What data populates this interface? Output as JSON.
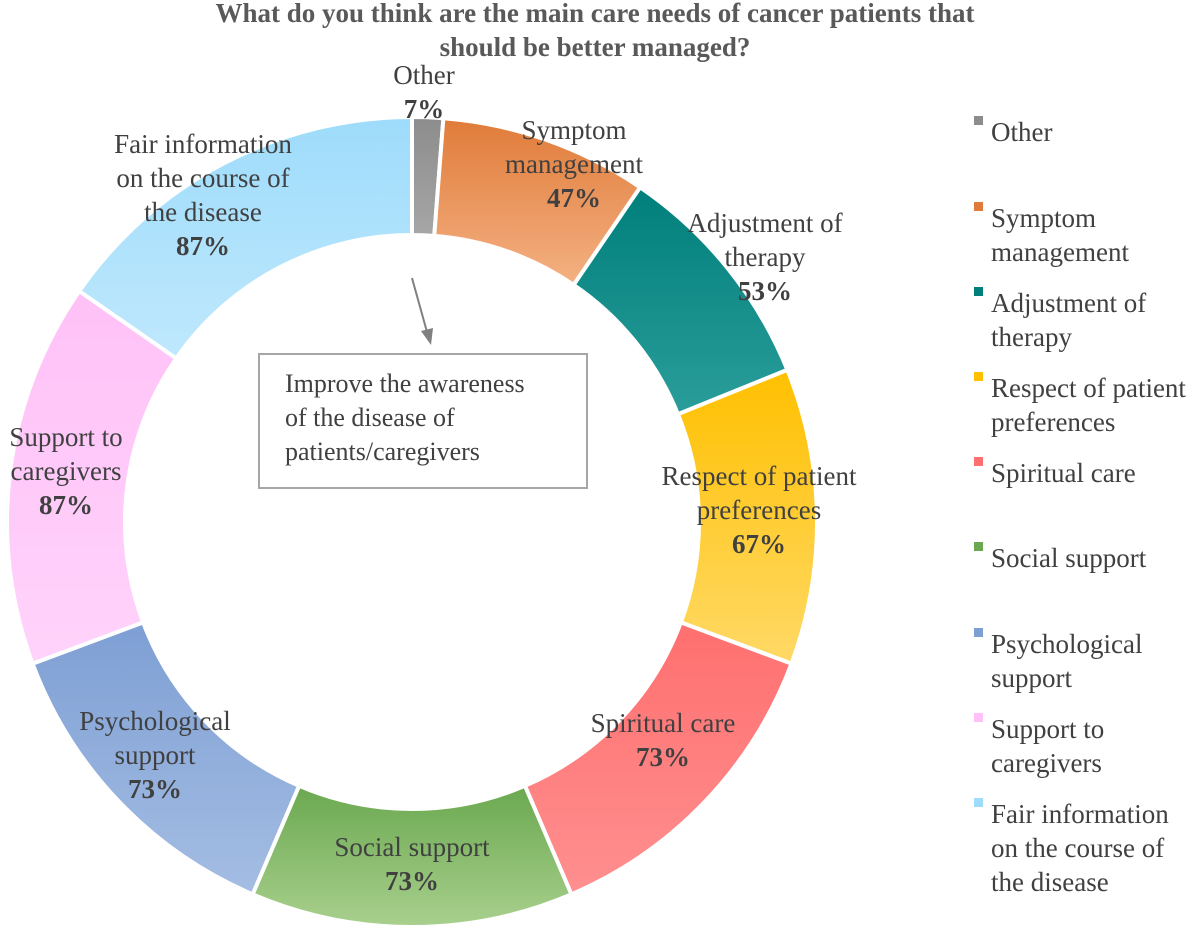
{
  "chart_data": {
    "type": "pie",
    "title_lines": [
      "What do you think are the main care needs of cancer patients that",
      "should be better managed?"
    ],
    "categories": [
      "Other",
      "Symptom management",
      "Adjustment of therapy",
      "Respect of patient preferences",
      "Spiritual care",
      "Social support",
      "Psychological support",
      "Support to caregivers",
      "Fair information on the course of the disease"
    ],
    "slice_label_lines": [
      [
        "Other"
      ],
      [
        "Symptom",
        "management"
      ],
      [
        "Adjustment of",
        "therapy"
      ],
      [
        "Respect of patient",
        "preferences"
      ],
      [
        "Spiritual care"
      ],
      [
        "Social support"
      ],
      [
        "Psychological",
        "support"
      ],
      [
        "Support to",
        "caregivers"
      ],
      [
        "Fair information",
        "on the course of",
        "the disease"
      ]
    ],
    "values": [
      7,
      47,
      53,
      67,
      73,
      73,
      73,
      87,
      87
    ],
    "value_labels": [
      "7%",
      "47%",
      "53%",
      "67%",
      "73%",
      "73%",
      "73%",
      "87%",
      "87%"
    ],
    "colors": [
      [
        "#a6a6a6",
        "#8c8c8c"
      ],
      [
        "#f4b183",
        "#e07b39"
      ],
      [
        "#2a9d9a",
        "#007f7b"
      ],
      [
        "#ffd966",
        "#ffc000"
      ],
      [
        "#ff8f8f",
        "#ff6f6f"
      ],
      [
        "#a9d08e",
        "#6aa84f"
      ],
      [
        "#a4bde3",
        "#7e9fd4"
      ],
      [
        "#ffd3fb",
        "#ffc1f7"
      ],
      [
        "#bfe8fd",
        "#9edcfb"
      ]
    ],
    "legend_lines": [
      [
        "Other"
      ],
      [
        "Symptom",
        "management"
      ],
      [
        "Adjustment of",
        "therapy"
      ],
      [
        "Respect of patient",
        "preferences"
      ],
      [
        "Spiritual care"
      ],
      [
        "Social support"
      ],
      [
        "Psychological",
        "support"
      ],
      [
        "Support to",
        "caregivers"
      ],
      [
        "Fair information",
        "on the course of",
        "the disease"
      ]
    ],
    "legend_position": "right",
    "callout_lines": [
      "Improve the awareness",
      "of the disease of",
      "patients/caregivers"
    ],
    "callout_color": "#808080"
  }
}
